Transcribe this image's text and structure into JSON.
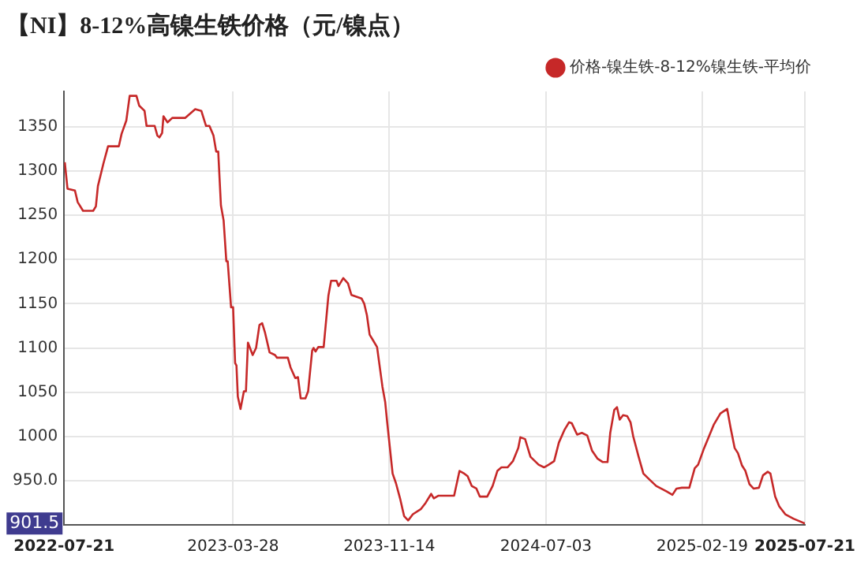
{
  "chart_data": {
    "type": "line",
    "title": "【NI】8-12%高镍生铁价格（元/镍点）",
    "x": [
      "2022-07-22",
      "2022-07-26",
      "2022-08-06",
      "2022-08-10",
      "2022-08-18",
      "2022-09-02",
      "2022-09-06",
      "2022-09-09",
      "2022-09-17",
      "2022-09-24",
      "2022-10-10",
      "2022-10-14",
      "2022-10-21",
      "2022-10-26",
      "2022-11-05",
      "2022-11-09",
      "2022-11-17",
      "2022-11-20",
      "2022-12-02",
      "2022-12-06",
      "2022-12-09",
      "2022-12-13",
      "2022-12-15",
      "2022-12-21",
      "2022-12-28",
      "2023-01-16",
      "2023-01-31",
      "2023-02-09",
      "2023-02-16",
      "2023-02-21",
      "2023-02-27",
      "2023-03-03",
      "2023-03-06",
      "2023-03-10",
      "2023-03-14",
      "2023-03-18",
      "2023-03-20",
      "2023-03-25",
      "2023-03-28",
      "2023-03-31",
      "2023-04-02",
      "2023-04-04",
      "2023-04-08",
      "2023-04-13",
      "2023-04-16",
      "2023-04-19",
      "2023-04-26",
      "2023-05-01",
      "2023-05-06",
      "2023-05-10",
      "2023-05-14",
      "2023-05-21",
      "2023-05-29",
      "2023-06-01",
      "2023-06-17",
      "2023-06-21",
      "2023-06-28",
      "2023-07-02",
      "2023-07-06",
      "2023-07-13",
      "2023-07-17",
      "2023-07-23",
      "2023-07-25",
      "2023-07-28",
      "2023-08-01",
      "2023-08-09",
      "2023-08-16",
      "2023-08-20",
      "2023-08-28",
      "2023-08-31",
      "2023-09-07",
      "2023-09-14",
      "2023-09-19",
      "2023-10-04",
      "2023-10-08",
      "2023-10-12",
      "2023-10-16",
      "2023-10-20",
      "2023-10-27",
      "2023-11-04",
      "2023-11-08",
      "2023-11-11",
      "2023-11-15",
      "2023-11-19",
      "2023-11-24",
      "2023-11-30",
      "2023-12-06",
      "2023-12-12",
      "2023-12-19",
      "2023-12-31",
      "2024-01-07",
      "2024-01-15",
      "2024-01-19",
      "2024-01-26",
      "2024-02-18",
      "2024-02-26",
      "2024-03-04",
      "2024-03-09",
      "2024-03-15",
      "2024-03-22",
      "2024-03-27",
      "2024-04-07",
      "2024-04-15",
      "2024-04-22",
      "2024-04-28",
      "2024-05-07",
      "2024-05-15",
      "2024-05-23",
      "2024-05-26",
      "2024-06-02",
      "2024-06-10",
      "2024-06-22",
      "2024-06-30",
      "2024-07-07",
      "2024-07-15",
      "2024-07-22",
      "2024-07-30",
      "2024-08-06",
      "2024-08-10",
      "2024-08-18",
      "2024-08-25",
      "2024-09-02",
      "2024-09-09",
      "2024-09-17",
      "2024-09-25",
      "2024-10-02",
      "2024-10-06",
      "2024-10-12",
      "2024-10-16",
      "2024-10-20",
      "2024-10-25",
      "2024-10-31",
      "2024-11-05",
      "2024-11-09",
      "2024-11-17",
      "2024-11-24",
      "2024-12-02",
      "2024-12-13",
      "2024-12-28",
      "2025-01-06",
      "2025-01-12",
      "2025-01-20",
      "2025-01-31",
      "2025-02-08",
      "2025-02-13",
      "2025-02-21",
      "2025-02-28",
      "2025-03-08",
      "2025-03-18",
      "2025-03-28",
      "2025-04-02",
      "2025-04-08",
      "2025-04-13",
      "2025-04-19",
      "2025-04-24",
      "2025-04-30",
      "2025-05-06",
      "2025-05-14",
      "2025-05-20",
      "2025-05-27",
      "2025-05-31",
      "2025-06-07",
      "2025-06-13",
      "2025-06-22",
      "2025-07-04",
      "2025-07-21"
    ],
    "series": [
      {
        "name": "价格-镍生铁-8-12%镍生铁-平均价",
        "color": "#c62828",
        "values": [
          1310,
          1280,
          1278,
          1265,
          1255,
          1255,
          1260,
          1283,
          1308,
          1328,
          1328,
          1342,
          1357,
          1385,
          1385,
          1374,
          1368,
          1351,
          1351,
          1340,
          1338,
          1343,
          1362,
          1355,
          1360,
          1360,
          1370,
          1368,
          1351,
          1351,
          1340,
          1322,
          1322,
          1261,
          1244,
          1198,
          1198,
          1146,
          1146,
          1083,
          1080,
          1045,
          1031,
          1051,
          1051,
          1106,
          1092,
          1100,
          1126,
          1128,
          1118,
          1095,
          1092,
          1089,
          1089,
          1078,
          1066,
          1067,
          1043,
          1043,
          1051,
          1097,
          1100,
          1096,
          1101,
          1101,
          1159,
          1176,
          1176,
          1170,
          1179,
          1173,
          1160,
          1156,
          1150,
          1137,
          1115,
          1110,
          1101,
          1056,
          1039,
          1016,
          987,
          958,
          947,
          930,
          910,
          905,
          912,
          918,
          925,
          935,
          930,
          933,
          933,
          961,
          958,
          955,
          944,
          941,
          932,
          932,
          944,
          961,
          965,
          965,
          972,
          987,
          999,
          997,
          977,
          968,
          965,
          968,
          972,
          993,
          1007,
          1016,
          1015,
          1002,
          1004,
          1001,
          984,
          975,
          971,
          971,
          1004,
          1030,
          1033,
          1019,
          1024,
          1023,
          1016,
          1000,
          977,
          958,
          952,
          944,
          938,
          934,
          941,
          942,
          942,
          964,
          968,
          985,
          998,
          1013,
          1026,
          1031,
          1010,
          987,
          981,
          967,
          961,
          946,
          941,
          942,
          956,
          960,
          958,
          932,
          921,
          912,
          907,
          901.5
        ]
      }
    ],
    "xlim": [
      "2022-07-21",
      "2025-07-21"
    ],
    "xticks": [
      "2022-07-21",
      "2023-03-28",
      "2023-11-14",
      "2024-07-03",
      "2025-02-19",
      "2025-07-21"
    ],
    "ylim": [
      900,
      1390
    ],
    "yticks": [
      {
        "value": 900,
        "label": null
      },
      {
        "value": 950,
        "label": "950.0"
      },
      1000,
      1050,
      1100,
      1150,
      1200,
      1250,
      1300,
      1350
    ],
    "grid": true,
    "legend": "top right",
    "marker": "none",
    "annotations": [
      "901.5"
    ]
  }
}
